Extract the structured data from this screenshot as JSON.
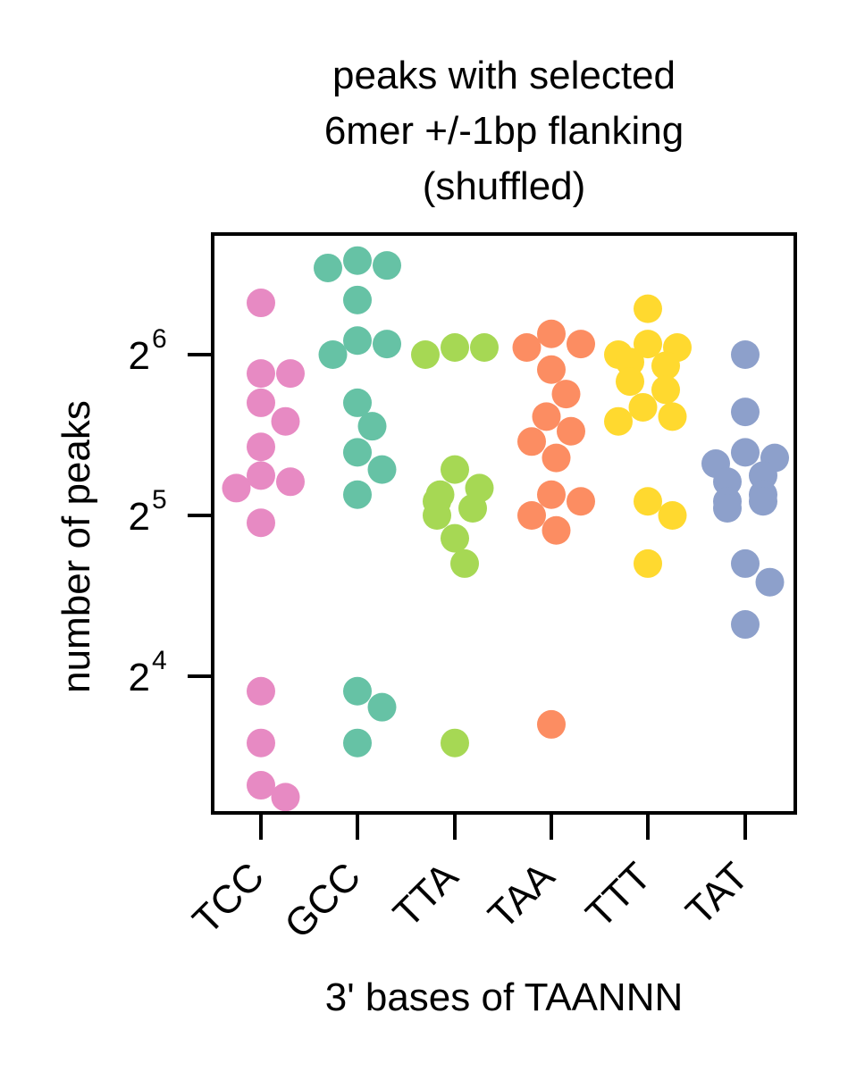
{
  "chart_data": {
    "type": "scatter",
    "subtype": "strip/swarm",
    "title": [
      "peaks with selected",
      "6mer +/-1bp flanking",
      "(shuffled)"
    ],
    "xlabel": "3' bases of TAANNN",
    "ylabel": "number of peaks",
    "yscale": "log2",
    "ylim": [
      9.5,
      102
    ],
    "yticks": [
      {
        "value": 16,
        "base": "2",
        "exp": "4"
      },
      {
        "value": 32,
        "base": "2",
        "exp": "5"
      },
      {
        "value": 64,
        "base": "2",
        "exp": "6"
      }
    ],
    "categories": [
      "TCC",
      "GCC",
      "TTA",
      "TAA",
      "TTT",
      "TAT"
    ],
    "series": [
      {
        "name": "TCC",
        "color": "#e78ac3",
        "values": [
          80,
          59,
          59,
          52,
          48,
          43,
          38,
          37,
          36,
          31,
          15,
          12,
          10,
          9.5
        ]
      },
      {
        "name": "GCC",
        "color": "#66c2a5",
        "values": [
          96,
          94,
          93,
          81,
          68,
          67,
          64,
          52,
          47,
          42,
          39,
          35,
          15,
          14,
          12
        ]
      },
      {
        "name": "TTA",
        "color": "#a6d854",
        "values": [
          66,
          66,
          64,
          39,
          36,
          35,
          34,
          33,
          32,
          29,
          26,
          12
        ]
      },
      {
        "name": "TAA",
        "color": "#fc8d62",
        "values": [
          70,
          67,
          66,
          60,
          54,
          49,
          46,
          44,
          41,
          35,
          34,
          32,
          30,
          13
        ]
      },
      {
        "name": "TTT",
        "color": "#ffd92f",
        "values": [
          78,
          67,
          66,
          64,
          62,
          61,
          57,
          55,
          51,
          49,
          48,
          34,
          32,
          26
        ]
      },
      {
        "name": "TAT",
        "color": "#8da0cb",
        "values": [
          64,
          50,
          42,
          41,
          40,
          38,
          37,
          35,
          34,
          34,
          33,
          26,
          24,
          20
        ]
      }
    ]
  }
}
